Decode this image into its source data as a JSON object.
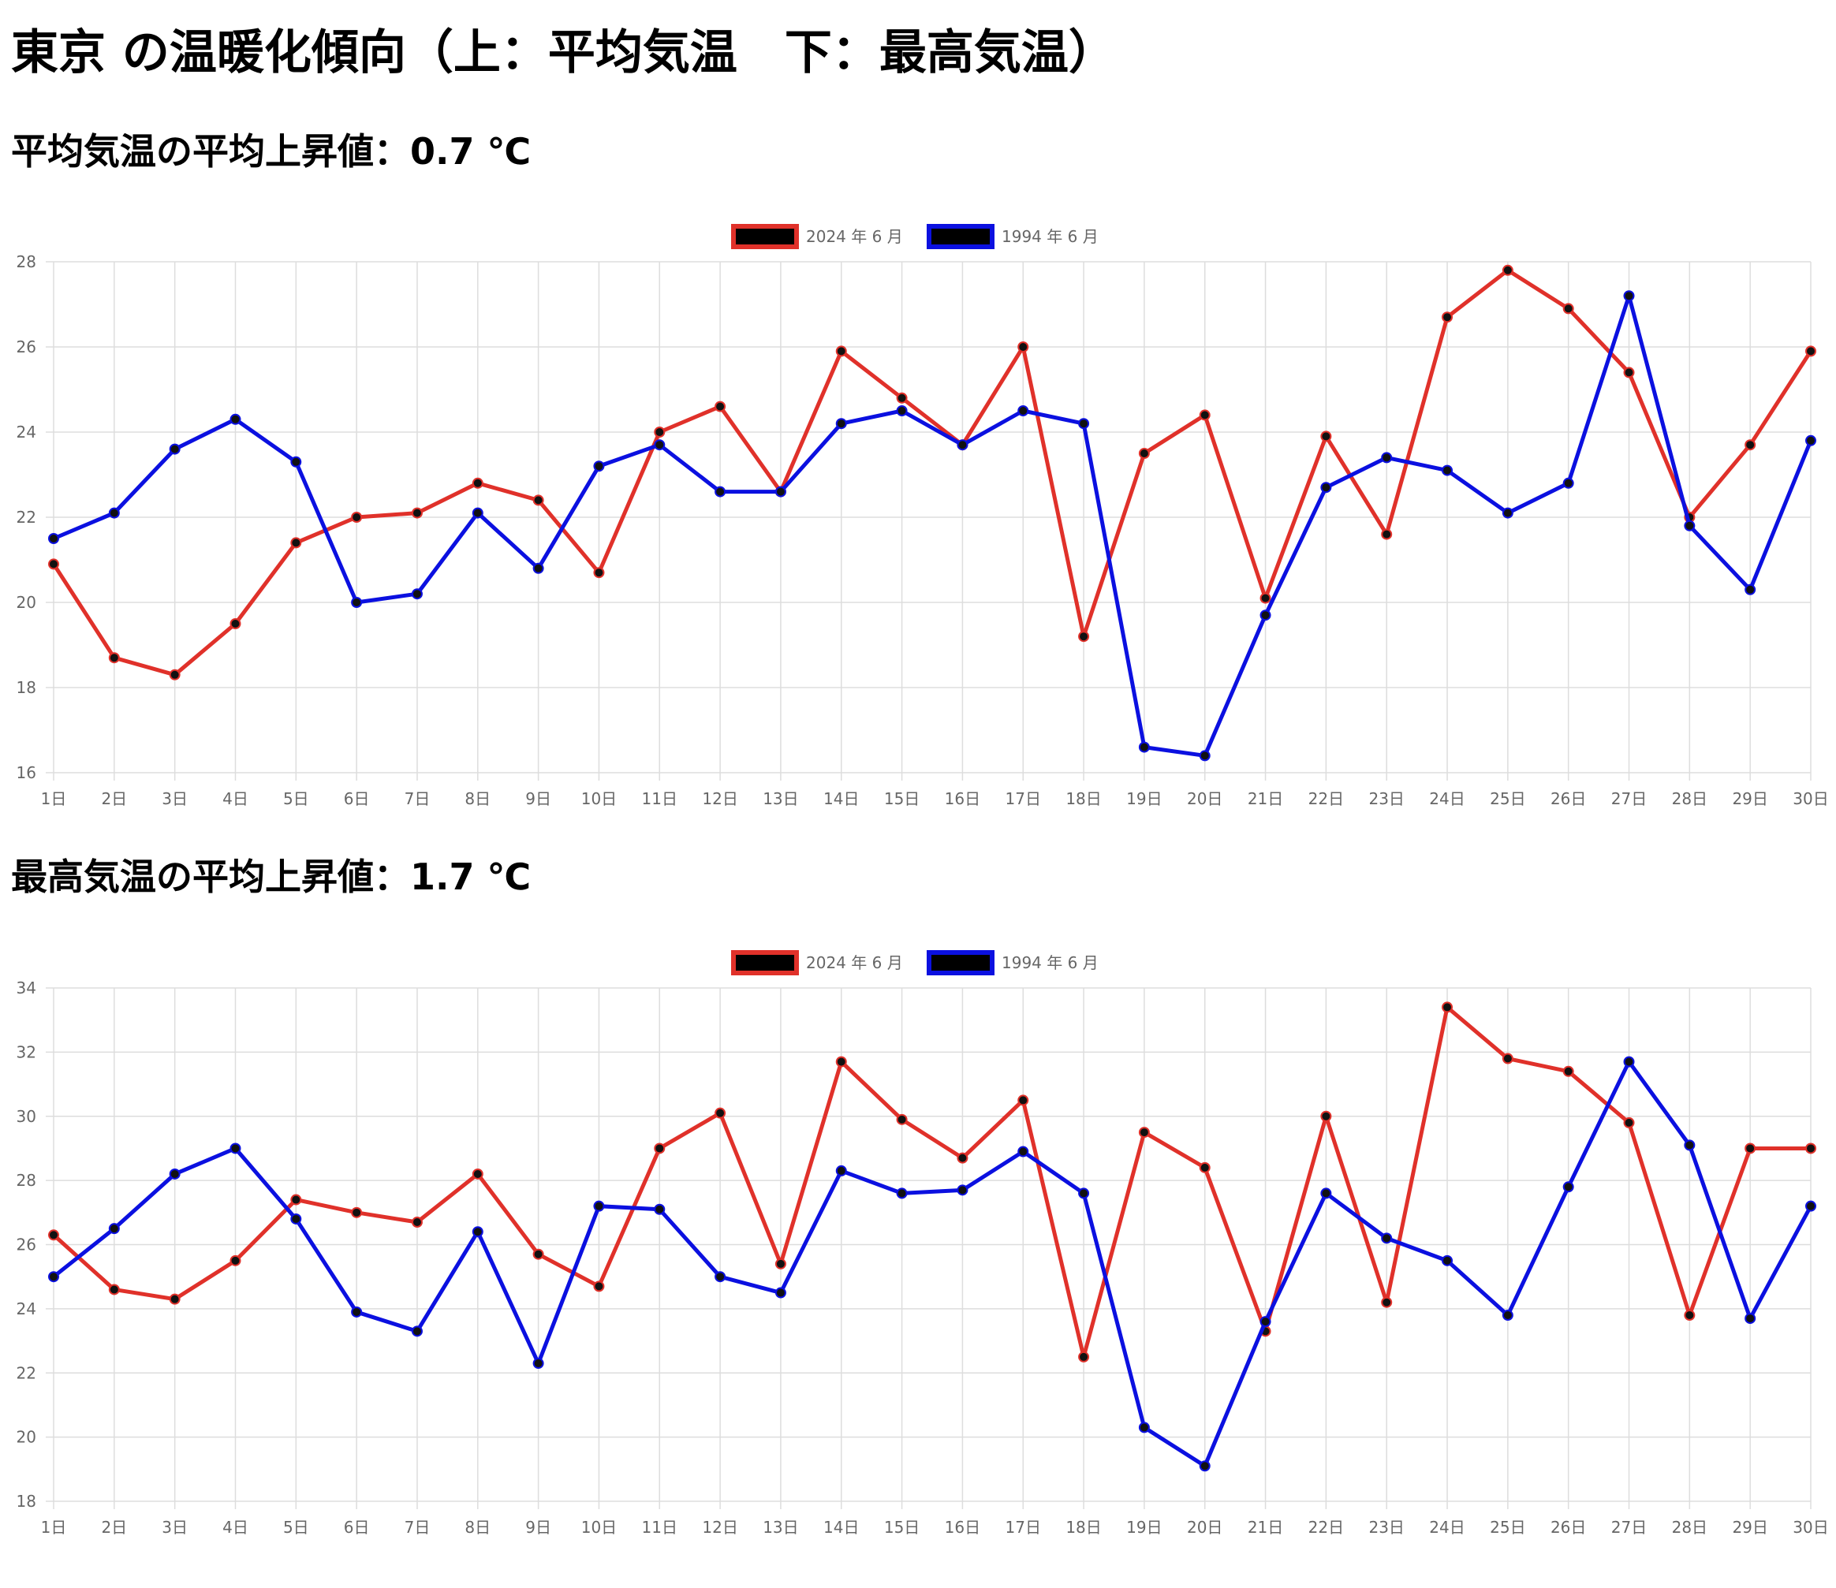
{
  "title": "東京 の温暖化傾向（上：平均気温　下：最高気温）",
  "colors": {
    "series_2024": "#e0312a",
    "series_1994": "#0b10e0",
    "grid": "#dddddd",
    "point": "#111111"
  },
  "sections": [
    {
      "heading": "平均気温の平均上昇値：0.7 ℃"
    },
    {
      "heading": "最高気温の平均上昇値：1.7 ℃"
    }
  ],
  "chart_data": [
    {
      "type": "line",
      "title": "",
      "xlabel": "",
      "ylabel": "",
      "categories": [
        "1日",
        "2日",
        "3日",
        "4日",
        "5日",
        "6日",
        "7日",
        "8日",
        "9日",
        "10日",
        "11日",
        "12日",
        "13日",
        "14日",
        "15日",
        "16日",
        "17日",
        "18日",
        "19日",
        "20日",
        "21日",
        "22日",
        "23日",
        "24日",
        "25日",
        "26日",
        "27日",
        "28日",
        "29日",
        "30日"
      ],
      "ylim": [
        16,
        28
      ],
      "yticks": [
        16,
        18,
        20,
        22,
        24,
        26,
        28
      ],
      "legend_position": "top-center",
      "grid": true,
      "series": [
        {
          "name": "2024 年 6 月",
          "color": "#e0312a",
          "values": [
            20.9,
            18.7,
            18.3,
            19.5,
            21.4,
            22.0,
            22.1,
            22.8,
            22.4,
            20.7,
            24.0,
            24.6,
            22.6,
            25.9,
            24.8,
            23.7,
            26.0,
            19.2,
            23.5,
            24.4,
            20.1,
            23.9,
            21.6,
            26.7,
            27.8,
            26.9,
            25.4,
            22.0,
            23.7,
            25.9
          ]
        },
        {
          "name": "1994 年 6 月",
          "color": "#0b10e0",
          "values": [
            21.5,
            22.1,
            23.6,
            24.3,
            23.3,
            20.0,
            20.2,
            22.1,
            20.8,
            23.2,
            23.7,
            22.6,
            22.6,
            24.2,
            24.5,
            23.7,
            24.5,
            24.2,
            16.6,
            16.4,
            19.7,
            22.7,
            23.4,
            23.1,
            22.1,
            22.8,
            27.2,
            21.8,
            20.3,
            23.8
          ]
        }
      ]
    },
    {
      "type": "line",
      "title": "",
      "xlabel": "",
      "ylabel": "",
      "categories": [
        "1日",
        "2日",
        "3日",
        "4日",
        "5日",
        "6日",
        "7日",
        "8日",
        "9日",
        "10日",
        "11日",
        "12日",
        "13日",
        "14日",
        "15日",
        "16日",
        "17日",
        "18日",
        "19日",
        "20日",
        "21日",
        "22日",
        "23日",
        "24日",
        "25日",
        "26日",
        "27日",
        "28日",
        "29日",
        "30日"
      ],
      "ylim": [
        18,
        34
      ],
      "yticks": [
        18,
        20,
        22,
        24,
        26,
        28,
        30,
        32,
        34
      ],
      "legend_position": "top-center",
      "grid": true,
      "series": [
        {
          "name": "2024 年 6 月",
          "color": "#e0312a",
          "values": [
            26.3,
            24.6,
            24.3,
            25.5,
            27.4,
            27.0,
            26.7,
            28.2,
            25.7,
            24.7,
            29.0,
            30.1,
            25.4,
            31.7,
            29.9,
            28.7,
            30.5,
            22.5,
            29.5,
            28.4,
            23.3,
            30.0,
            24.2,
            33.4,
            31.8,
            31.4,
            29.8,
            23.8,
            29.0,
            29.0
          ]
        },
        {
          "name": "1994 年 6 月",
          "color": "#0b10e0",
          "values": [
            25.0,
            26.5,
            28.2,
            29.0,
            26.8,
            23.9,
            23.3,
            26.4,
            22.3,
            27.2,
            27.1,
            25.0,
            24.5,
            28.3,
            27.6,
            27.7,
            28.9,
            27.6,
            20.3,
            19.1,
            23.6,
            27.6,
            26.2,
            25.5,
            23.8,
            27.8,
            31.7,
            29.1,
            23.7,
            27.2
          ]
        }
      ]
    }
  ]
}
